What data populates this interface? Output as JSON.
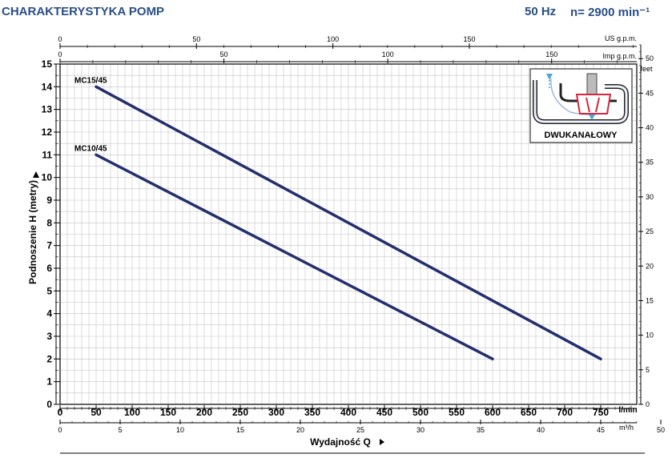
{
  "header": {
    "title": "CHARAKTERYSTYKA POMP",
    "frequency": "50 Hz",
    "speed": "n= 2900 min⁻¹"
  },
  "colors": {
    "header_text": "#2a4e86",
    "curve": "#232f6e",
    "grid": "#c4c4c4",
    "axis": "#000000"
  },
  "inset": {
    "label": "DWUKANAŁOWY",
    "icon": "two-channel-impeller-icon"
  },
  "chart_data": {
    "type": "line",
    "title": "CHARAKTERYSTYKA POMP",
    "xlabel": "Wydajność Q",
    "ylabel": "Podnoszenie H (metry)",
    "xlim": [
      0,
      800
    ],
    "ylim": [
      0,
      15
    ],
    "grid": true,
    "x_unit": "l/min",
    "x_ticks": [
      0,
      50,
      100,
      150,
      200,
      250,
      300,
      350,
      400,
      450,
      500,
      550,
      600,
      650,
      700,
      750
    ],
    "y_ticks": [
      0,
      1,
      2,
      3,
      4,
      5,
      6,
      7,
      8,
      9,
      10,
      11,
      12,
      13,
      14,
      15
    ],
    "secondary_axes": {
      "top_us": {
        "unit": "US g.p.m.",
        "ticks": [
          0,
          50,
          100,
          150
        ]
      },
      "top_imp": {
        "unit": "Imp g.p.m.",
        "ticks": [
          0,
          50,
          100,
          150
        ]
      },
      "bottom_m3h": {
        "unit": "m³/h",
        "ticks": [
          0,
          5,
          10,
          15,
          20,
          25,
          30,
          35,
          40,
          45,
          50
        ]
      },
      "right_feet": {
        "unit": "feet",
        "ticks": [
          0,
          5,
          10,
          15,
          20,
          25,
          30,
          35,
          40,
          45,
          50
        ]
      }
    },
    "series": [
      {
        "name": "MC15/45",
        "x": [
          50,
          750
        ],
        "y": [
          14,
          2
        ]
      },
      {
        "name": "MC10/45",
        "x": [
          50,
          600
        ],
        "y": [
          11,
          2
        ]
      }
    ]
  }
}
